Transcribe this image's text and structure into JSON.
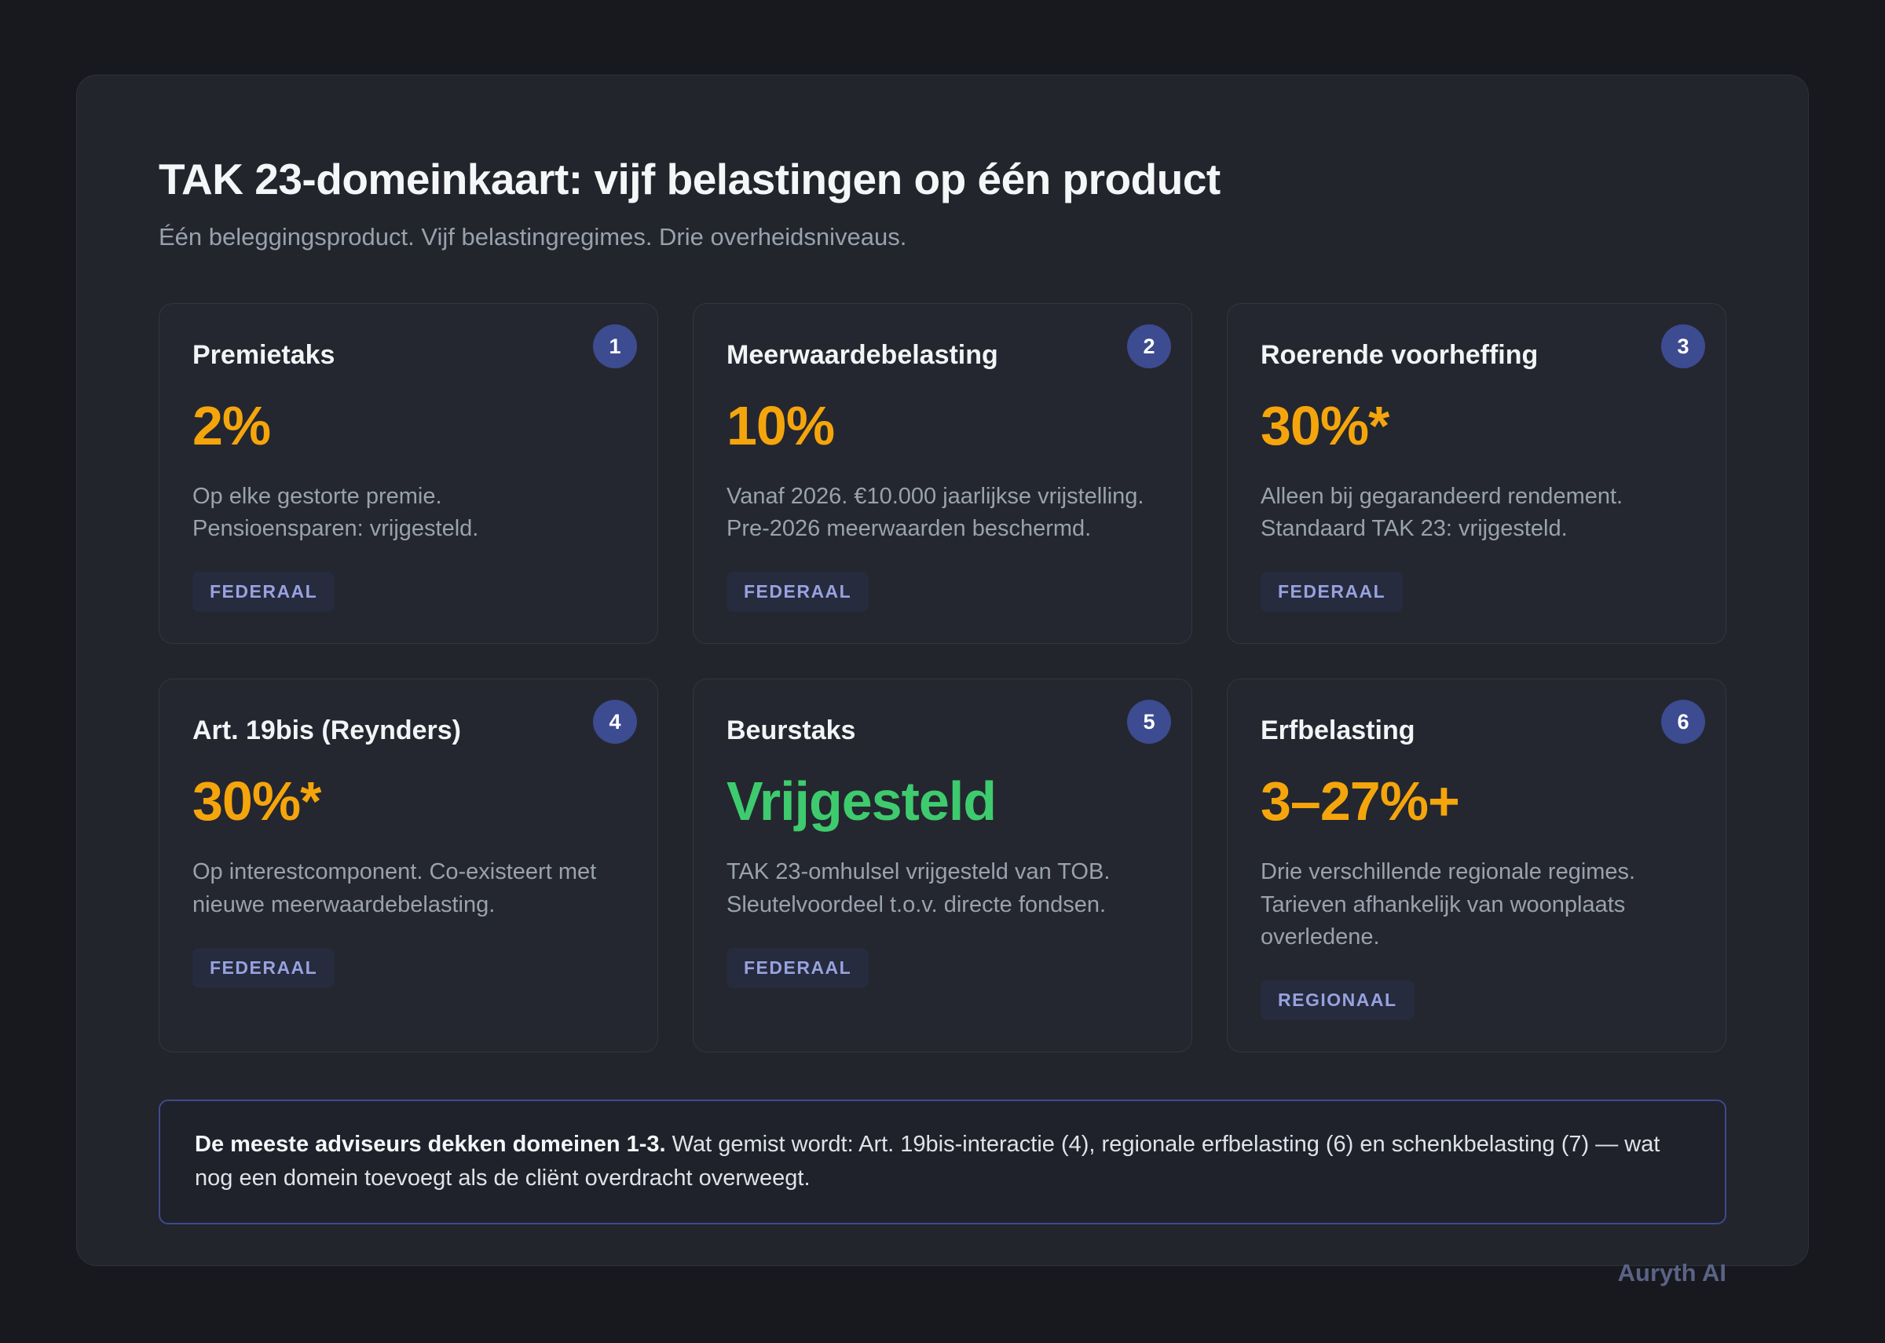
{
  "header": {
    "title": "TAK 23-domeinkaart: vijf belastingen op één product",
    "subtitle": "Één beleggingsproduct. Vijf belastingregimes. Drie overheidsniveaus."
  },
  "colors": {
    "accent_orange": "#f5a50c",
    "accent_green": "#3ecb6e",
    "number_badge_indigo": "#3d4b90",
    "level_badge_text": "#97a2e0",
    "note_border": "#3e4a8f"
  },
  "cards": [
    {
      "number": "1",
      "title": "Premietaks",
      "value": "2%",
      "value_color": "#f5a50c",
      "description": "Op elke gestorte premie. Pensioensparen: vrijgesteld.",
      "badge": "FEDERAAL"
    },
    {
      "number": "2",
      "title": "Meerwaardebelasting",
      "value": "10%",
      "value_color": "#f5a50c",
      "description": "Vanaf 2026. €10.000 jaarlijkse vrijstelling. Pre-2026 meerwaarden beschermd.",
      "badge": "FEDERAAL"
    },
    {
      "number": "3",
      "title": "Roerende voorheffing",
      "value": "30%*",
      "value_color": "#f5a50c",
      "description": "Alleen bij gegarandeerd rendement. Standaard TAK 23: vrijgesteld.",
      "badge": "FEDERAAL"
    },
    {
      "number": "4",
      "title": "Art. 19bis (Reynders)",
      "value": "30%*",
      "value_color": "#f5a50c",
      "description": "Op interestcomponent. Co-existeert met nieuwe meerwaardebelasting.",
      "badge": "FEDERAAL"
    },
    {
      "number": "5",
      "title": "Beurstaks",
      "value": "Vrijgesteld",
      "value_color": "#3ecb6e",
      "description": "TAK 23-omhulsel vrijgesteld van TOB. Sleutelvoordeel t.o.v. directe fondsen.",
      "badge": "FEDERAAL"
    },
    {
      "number": "6",
      "title": "Erfbelasting",
      "value": "3–27%+",
      "value_color": "#f5a50c",
      "description": "Drie verschillende regionale regimes. Tarieven afhankelijk van woonplaats overledene.",
      "badge": "REGIONAAL"
    }
  ],
  "note": {
    "bold": "De meeste adviseurs dekken domeinen 1-3.",
    "text": " Wat gemist wordt: Art. 19bis-interactie (4), regionale erfbelasting (6) en schenkbelasting (7) — wat nog een domein toevoegt als de cliënt overdracht overweegt."
  },
  "footer": {
    "brand": "Auryth AI"
  }
}
